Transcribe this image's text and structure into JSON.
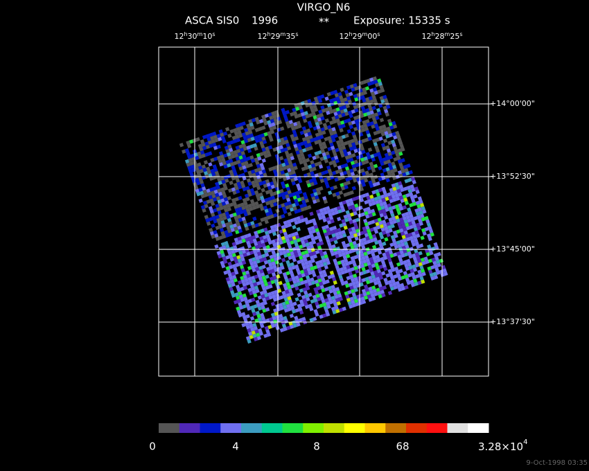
{
  "header": {
    "title": "VIRGO_N6",
    "instrument": "ASCA SIS0",
    "year": "1996",
    "flag": "**",
    "exposure": "Exposure: 15335 s"
  },
  "ra_units": [
    "h",
    "m",
    "s"
  ],
  "ra_labels": [
    {
      "hours": "12",
      "minutes": "30",
      "seconds": "10"
    },
    {
      "hours": "12",
      "minutes": "29",
      "seconds": "35"
    },
    {
      "hours": "12",
      "minutes": "29",
      "seconds": "00"
    },
    {
      "hours": "12",
      "minutes": "28",
      "seconds": "25"
    }
  ],
  "dec_labels": [
    "+14°00'00\"",
    "+13°52'30\"",
    "+13°45'00\"",
    "+13°37'30\""
  ],
  "colorbar": {
    "colors": [
      "#555555",
      "#5028b8",
      "#0018c8",
      "#7070f0",
      "#3c9cc0",
      "#00c890",
      "#20e040",
      "#80f000",
      "#c0e000",
      "#ffff00",
      "#ffc800",
      "#c07000",
      "#e03000",
      "#ff1010",
      "#e0e0e0",
      "#ffffff"
    ],
    "labels": [
      "0",
      "4",
      "8",
      "68"
    ],
    "max_label": {
      "mantissa": "3.28×10",
      "exponent": "4"
    }
  },
  "timestamp": "9-Oct-1998 03:35"
}
